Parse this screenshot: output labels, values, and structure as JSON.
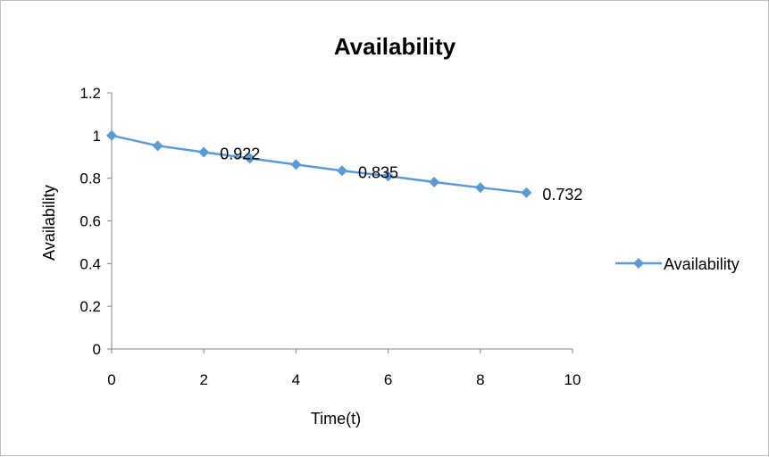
{
  "chart_data": {
    "type": "line",
    "title": "Availability",
    "xlabel": "Time(t)",
    "ylabel": "Availability",
    "xlim": [
      0,
      10
    ],
    "ylim": [
      0,
      1.2
    ],
    "x_ticks": [
      "0",
      "2",
      "4",
      "6",
      "8",
      "10"
    ],
    "y_ticks": [
      "0",
      "0.2",
      "0.4",
      "0.6",
      "0.8",
      "1",
      "1.2"
    ],
    "grid": false,
    "legend": "right",
    "series": [
      {
        "name": "Availability",
        "color": "#5b9bd5",
        "x": [
          0,
          1,
          2,
          3,
          4,
          5,
          6,
          7,
          8,
          9
        ],
        "y": [
          1.0,
          0.952,
          0.922,
          0.893,
          0.864,
          0.835,
          0.81,
          0.782,
          0.756,
          0.732
        ]
      }
    ],
    "data_labels": [
      {
        "x": 2,
        "y": 0.922,
        "text": "0.922"
      },
      {
        "x": 5,
        "y": 0.835,
        "text": "0.835"
      },
      {
        "x": 9,
        "y": 0.732,
        "text": "0.732"
      }
    ]
  }
}
